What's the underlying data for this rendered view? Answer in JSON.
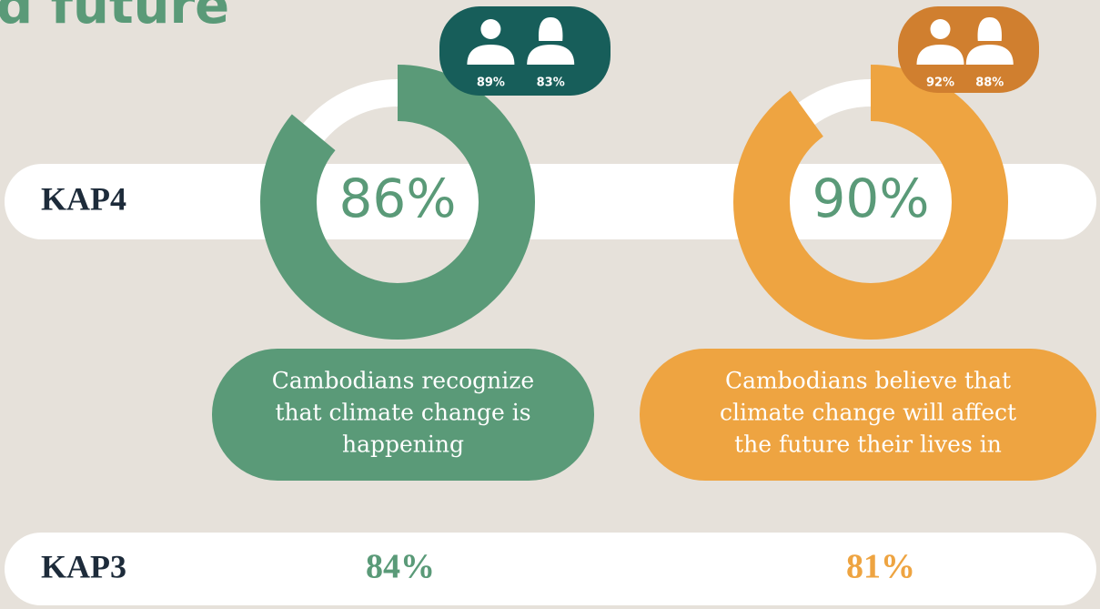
{
  "header": {
    "title": "d future"
  },
  "rows": [
    {
      "label": "KAP4"
    },
    {
      "label": "KAP3"
    }
  ],
  "panels": [
    {
      "value": 86,
      "label": "86%",
      "male": "89%",
      "female": "83%",
      "caption": [
        "Cambodians recognize",
        "that climate change is",
        "happening"
      ],
      "kap3": "84%",
      "color": "#5a9a78",
      "badge_color": "#175e5a"
    },
    {
      "value": 90,
      "label": "90%",
      "male": "92%",
      "female": "88%",
      "caption": [
        "Cambodians believe that",
        "climate change will affect",
        "the future their lives in"
      ],
      "kap3": "81%",
      "color": "#eea441",
      "badge_color": "#d07f2f"
    }
  ]
}
